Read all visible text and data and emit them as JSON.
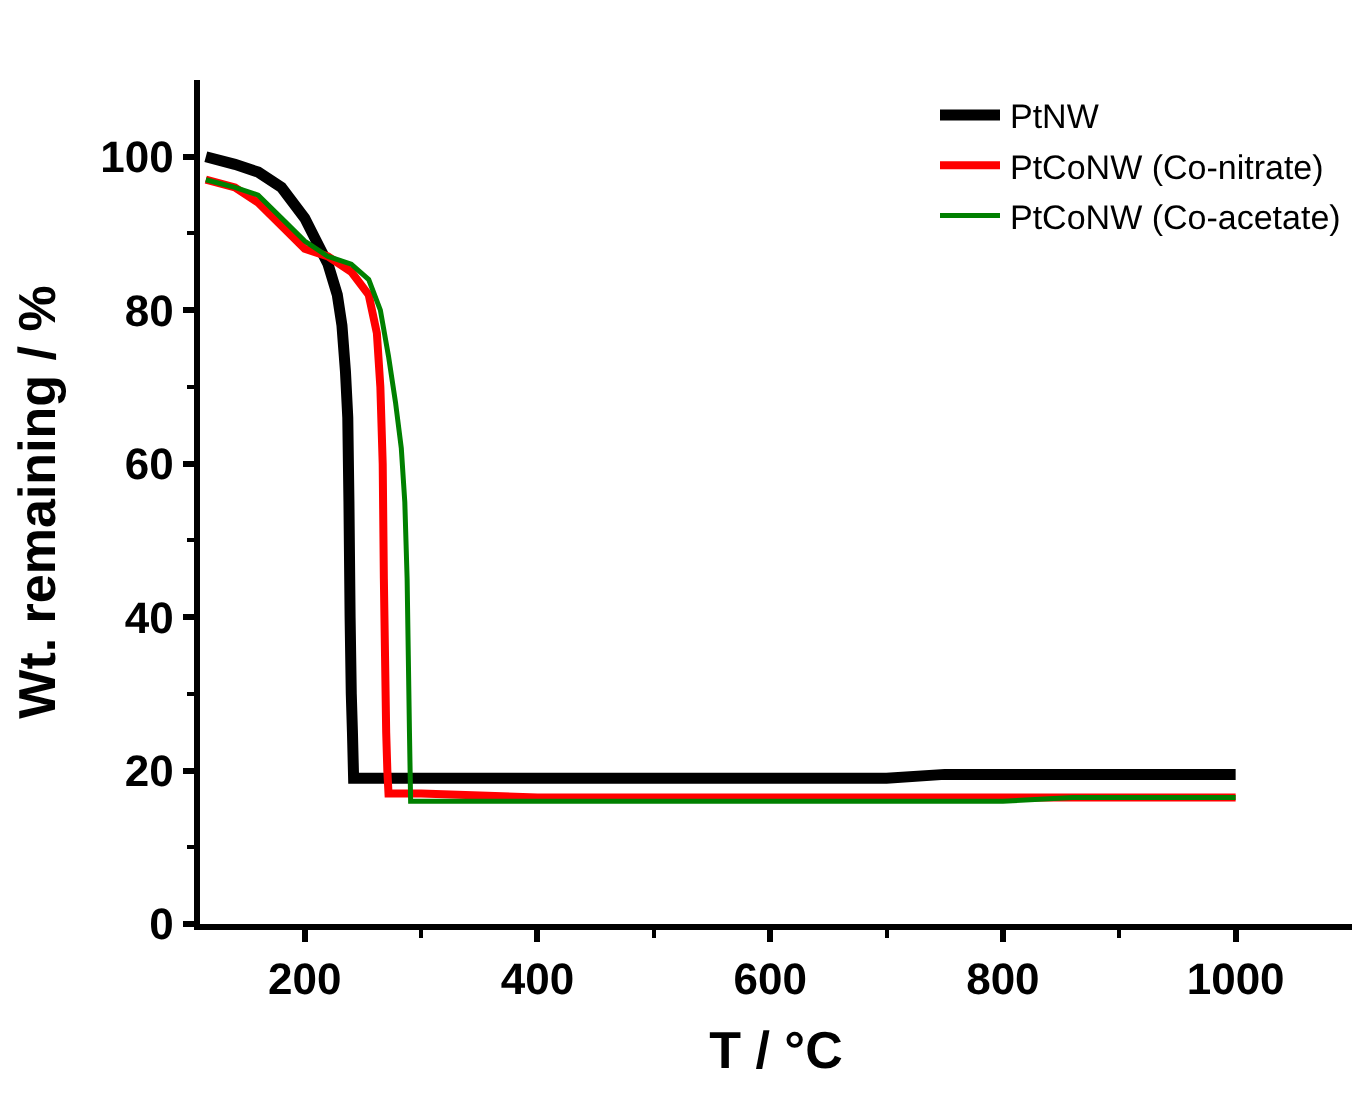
{
  "chart_data": {
    "type": "line",
    "xlabel": "T / °C",
    "ylabel": "Wt. remaining / %",
    "xlim": [
      110,
      1100
    ],
    "ylim": [
      0,
      110
    ],
    "xticks": [
      200,
      400,
      600,
      800,
      1000
    ],
    "yticks": [
      0,
      20,
      40,
      60,
      80,
      100
    ],
    "legend": "top right",
    "marker": "none",
    "line_style": "solid",
    "series": [
      {
        "name": "PtNW",
        "color": "#000000",
        "x": [
          115,
          140,
          160,
          180,
          200,
          210,
          220,
          228,
          232,
          235,
          237,
          238,
          239,
          240,
          241,
          242,
          245,
          300,
          500,
          700,
          750,
          800,
          900,
          1000
        ],
        "values": [
          100,
          99,
          98,
          96,
          92,
          89,
          86,
          82,
          78,
          72,
          66,
          55,
          40,
          30,
          25,
          19,
          19,
          19,
          19,
          19,
          19.5,
          19.5,
          19.5,
          19.5
        ]
      },
      {
        "name": "PtCoNW (Co-nitrate)",
        "color": "#ff0000",
        "x": [
          115,
          140,
          160,
          180,
          200,
          220,
          240,
          255,
          262,
          265,
          267,
          268,
          269,
          270,
          271,
          272,
          275,
          300,
          400,
          600,
          800,
          1000
        ],
        "values": [
          97,
          96,
          94,
          91,
          88,
          87,
          85,
          82,
          77,
          70,
          60,
          45,
          35,
          25,
          20,
          17,
          17,
          17,
          16.5,
          16.5,
          16.5,
          16.5
        ]
      },
      {
        "name": "PtCoNW (Co-acetate)",
        "color": "#008000",
        "x": [
          115,
          140,
          160,
          180,
          200,
          220,
          240,
          255,
          265,
          272,
          278,
          283,
          286,
          288,
          289,
          290,
          291,
          300,
          400,
          600,
          800,
          860,
          1000
        ],
        "values": [
          97,
          96,
          95,
          92,
          89,
          87,
          86,
          84,
          80,
          74,
          68,
          62,
          55,
          45,
          35,
          25,
          16,
          16,
          16,
          16,
          16,
          16.5,
          16.5
        ]
      }
    ]
  }
}
